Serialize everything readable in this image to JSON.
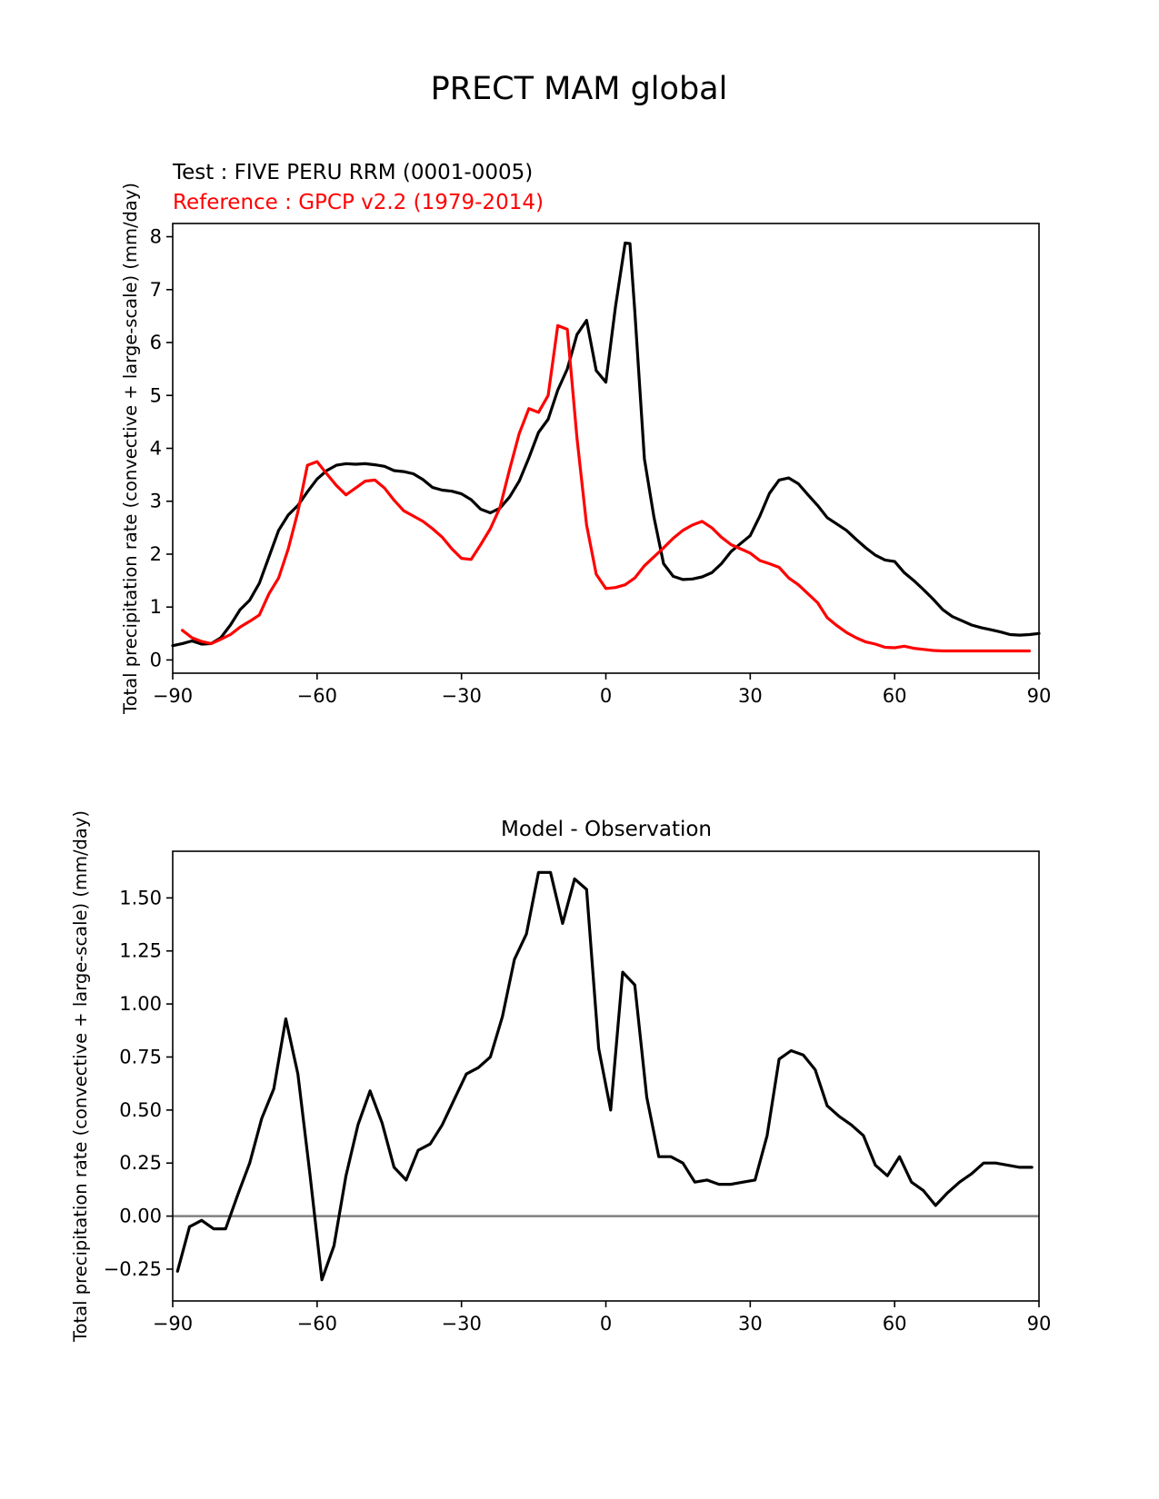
{
  "figure": {
    "title": "PRECT MAM global"
  },
  "chart_data": [
    {
      "type": "line",
      "title": "",
      "legend": [
        {
          "label": "Test : FIVE PERU RRM (0001-0005)",
          "color": "#000000"
        },
        {
          "label": "Reference : GPCP v2.2 (1979-2014)",
          "color": "#ff0000"
        }
      ],
      "xlabel": "",
      "ylabel": "Total precipitation rate (convective + large-scale) (mm/day)",
      "xlim": [
        -90,
        90
      ],
      "ylim": [
        -0.25,
        8.25
      ],
      "xticks": [
        -90,
        -60,
        -30,
        0,
        30,
        60,
        90
      ],
      "xtick_labels": [
        "−90",
        "−60",
        "−30",
        "0",
        "30",
        "60",
        "90"
      ],
      "yticks": [
        0,
        1,
        2,
        3,
        4,
        5,
        6,
        7,
        8
      ],
      "ytick_labels": [
        "0",
        "1",
        "2",
        "3",
        "4",
        "5",
        "6",
        "7",
        "8"
      ],
      "series": [
        {
          "name": "Test : FIVE PERU RRM (0001-0005)",
          "color": "#000000",
          "x": [
            -90,
            -88,
            -86,
            -84,
            -82,
            -80,
            -78,
            -76,
            -74,
            -72,
            -70,
            -68,
            -66,
            -64,
            -62,
            -60,
            -58,
            -56,
            -54,
            -52,
            -50,
            -48,
            -46,
            -44,
            -42,
            -40,
            -38,
            -36,
            -34,
            -32,
            -30,
            -28,
            -26,
            -24,
            -22,
            -20,
            -18,
            -16,
            -14,
            -12,
            -10,
            -8,
            -6,
            -4,
            -2,
            0,
            2,
            4,
            5,
            6,
            8,
            10,
            12,
            14,
            16,
            18,
            20,
            22,
            24,
            26,
            28,
            30,
            32,
            34,
            36,
            38,
            40,
            42,
            44,
            46,
            48,
            50,
            52,
            54,
            56,
            58,
            60,
            62,
            64,
            66,
            68,
            70,
            72,
            74,
            76,
            78,
            80,
            82,
            84,
            86,
            88,
            90
          ],
          "values": [
            0.27,
            0.31,
            0.36,
            0.3,
            0.31,
            0.42,
            0.66,
            0.95,
            1.13,
            1.45,
            1.95,
            2.45,
            2.74,
            2.92,
            3.18,
            3.42,
            3.58,
            3.68,
            3.71,
            3.7,
            3.71,
            3.69,
            3.66,
            3.58,
            3.56,
            3.52,
            3.41,
            3.26,
            3.21,
            3.19,
            3.14,
            3.03,
            2.85,
            2.78,
            2.87,
            3.08,
            3.38,
            3.82,
            4.3,
            4.55,
            5.1,
            5.5,
            6.15,
            6.42,
            5.47,
            5.25,
            6.68,
            7.88,
            7.87,
            6.6,
            3.8,
            2.7,
            1.82,
            1.58,
            1.52,
            1.53,
            1.57,
            1.65,
            1.82,
            2.05,
            2.2,
            2.35,
            2.72,
            3.15,
            3.4,
            3.44,
            3.33,
            3.12,
            2.92,
            2.69,
            2.57,
            2.45,
            2.28,
            2.12,
            1.98,
            1.89,
            1.86,
            1.65,
            1.5,
            1.33,
            1.15,
            0.95,
            0.82,
            0.74,
            0.66,
            0.61,
            0.57,
            0.53,
            0.48,
            0.47,
            0.48,
            0.5
          ]
        },
        {
          "name": "Reference : GPCP v2.2 (1979-2014)",
          "color": "#ff0000",
          "x": [
            -88,
            -86,
            -84,
            -82,
            -80,
            -78,
            -76,
            -74,
            -72,
            -70,
            -68,
            -66,
            -64,
            -62,
            -60,
            -58,
            -56,
            -54,
            -52,
            -50,
            -48,
            -46,
            -44,
            -42,
            -40,
            -38,
            -36,
            -34,
            -32,
            -30,
            -28,
            -26,
            -24,
            -22,
            -20,
            -18,
            -16,
            -14,
            -12,
            -10,
            -8,
            -6,
            -4,
            -2,
            0,
            2,
            4,
            6,
            8,
            10,
            12,
            14,
            16,
            18,
            20,
            22,
            24,
            26,
            28,
            30,
            32,
            34,
            36,
            38,
            40,
            42,
            44,
            46,
            48,
            50,
            52,
            54,
            56,
            58,
            60,
            62,
            64,
            66,
            68,
            70,
            72,
            74,
            76,
            78,
            80,
            82,
            84,
            86,
            88
          ],
          "values": [
            0.56,
            0.42,
            0.35,
            0.31,
            0.39,
            0.48,
            0.62,
            0.73,
            0.85,
            1.25,
            1.55,
            2.1,
            2.8,
            3.68,
            3.75,
            3.52,
            3.3,
            3.12,
            3.25,
            3.38,
            3.4,
            3.25,
            3.02,
            2.82,
            2.72,
            2.62,
            2.48,
            2.32,
            2.1,
            1.92,
            1.9,
            2.18,
            2.48,
            2.88,
            3.6,
            4.28,
            4.75,
            4.68,
            5.0,
            6.32,
            6.25,
            4.2,
            2.55,
            1.62,
            1.35,
            1.37,
            1.42,
            1.55,
            1.78,
            1.95,
            2.12,
            2.3,
            2.45,
            2.55,
            2.62,
            2.5,
            2.32,
            2.18,
            2.1,
            2.02,
            1.88,
            1.82,
            1.75,
            1.55,
            1.42,
            1.25,
            1.08,
            0.8,
            0.65,
            0.52,
            0.42,
            0.34,
            0.3,
            0.24,
            0.23,
            0.26,
            0.22,
            0.2,
            0.18,
            0.17,
            0.17,
            0.17,
            0.17,
            0.17,
            0.17,
            0.17,
            0.17,
            0.17,
            0.17
          ]
        }
      ]
    },
    {
      "type": "line",
      "title": "Model - Observation",
      "xlabel": "",
      "ylabel": "Total precipitation rate (convective + large-scale) (mm/day)",
      "xlim": [
        -90,
        90
      ],
      "ylim": [
        -0.4,
        1.72
      ],
      "xticks": [
        -90,
        -60,
        -30,
        0,
        30,
        60,
        90
      ],
      "xtick_labels": [
        "−90",
        "−60",
        "−30",
        "0",
        "30",
        "60",
        "90"
      ],
      "yticks": [
        -0.25,
        0,
        0.25,
        0.5,
        0.75,
        1.0,
        1.25,
        1.5
      ],
      "ytick_labels": [
        "−0.25",
        "0.00",
        "0.25",
        "0.50",
        "0.75",
        "1.00",
        "1.25",
        "1.50"
      ],
      "zero_line_color": "#808080",
      "series": [
        {
          "name": "Model - Observation",
          "color": "#000000",
          "x": [
            -89,
            -86.5,
            -84,
            -81.5,
            -79,
            -76.5,
            -74,
            -71.5,
            -69,
            -66.5,
            -64,
            -61.5,
            -59,
            -56.5,
            -54,
            -51.5,
            -49,
            -46.5,
            -44,
            -41.5,
            -39,
            -36.5,
            -34,
            -31.5,
            -29,
            -26.5,
            -24,
            -21.5,
            -19,
            -16.5,
            -14,
            -11.5,
            -9,
            -6.5,
            -4,
            -1.5,
            1,
            3.5,
            6,
            8.5,
            11,
            13.5,
            16,
            18.5,
            21,
            23.5,
            26,
            28.5,
            31,
            33.5,
            36,
            38.5,
            41,
            43.5,
            46,
            48.5,
            51,
            53.5,
            56,
            58.5,
            61,
            63.5,
            66,
            68.5,
            71,
            73.5,
            76,
            78.5,
            81,
            83.5,
            86,
            88.5
          ],
          "values": [
            -0.26,
            -0.05,
            -0.02,
            -0.06,
            -0.06,
            0.1,
            0.25,
            0.46,
            0.6,
            0.93,
            0.67,
            0.2,
            -0.3,
            -0.14,
            0.19,
            0.43,
            0.59,
            0.44,
            0.23,
            0.17,
            0.31,
            0.34,
            0.43,
            0.55,
            0.67,
            0.7,
            0.75,
            0.94,
            1.21,
            1.33,
            1.62,
            1.62,
            1.38,
            1.59,
            1.54,
            0.79,
            0.5,
            1.15,
            1.09,
            0.56,
            0.28,
            0.28,
            0.25,
            0.16,
            0.17,
            0.15,
            0.15,
            0.16,
            0.17,
            0.38,
            0.74,
            0.78,
            0.76,
            0.69,
            0.52,
            0.47,
            0.43,
            0.38,
            0.24,
            0.19,
            0.28,
            0.16,
            0.12,
            0.05,
            0.11,
            0.16,
            0.2,
            0.25,
            0.25,
            0.24,
            0.23,
            0.23
          ]
        }
      ]
    }
  ]
}
